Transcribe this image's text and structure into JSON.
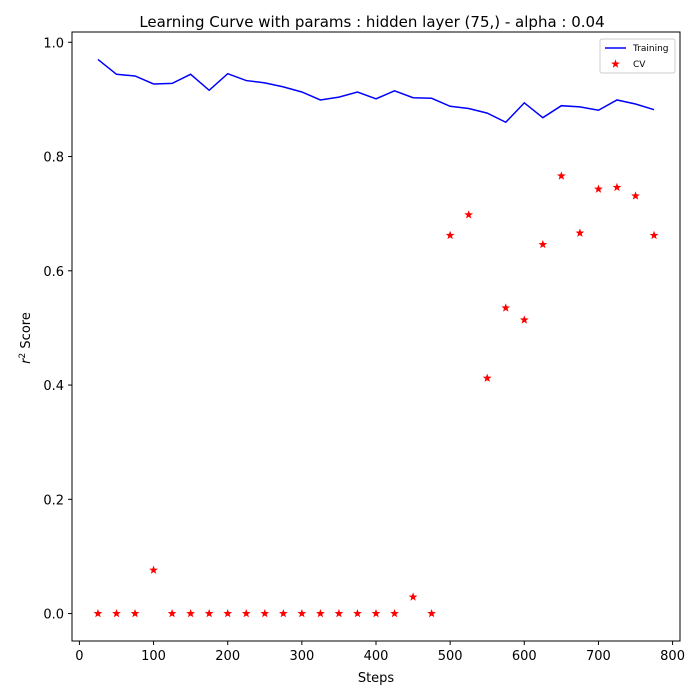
{
  "chart_data": {
    "type": "line",
    "title": "Learning Curve with params : hidden layer (75,) - alpha : 0.04",
    "xlabel": "Steps",
    "ylabel_main": "r",
    "ylabel_sup": "2",
    "ylabel_rest": " Score",
    "xlim": [
      -10,
      810
    ],
    "ylim": [
      -0.048,
      1.018
    ],
    "xticks": [
      0,
      100,
      200,
      300,
      400,
      500,
      600,
      700,
      800
    ],
    "yticks": [
      0.0,
      0.2,
      0.4,
      0.6,
      0.8,
      1.0
    ],
    "xtick_labels": [
      "0",
      "100",
      "200",
      "300",
      "400",
      "500",
      "600",
      "700",
      "800"
    ],
    "ytick_labels": [
      "0.0",
      "0.2",
      "0.4",
      "0.6",
      "0.8",
      "1.0"
    ],
    "grid": false,
    "legend_position": "top-right",
    "series": [
      {
        "name": "Training",
        "kind": "line",
        "color": "#0000ff",
        "x": [
          25,
          50,
          75,
          100,
          125,
          150,
          175,
          200,
          225,
          250,
          275,
          300,
          325,
          350,
          375,
          400,
          425,
          450,
          475,
          500,
          525,
          550,
          575,
          600,
          625,
          650,
          675,
          700,
          725,
          750,
          775
        ],
        "y": [
          0.97,
          0.944,
          0.941,
          0.927,
          0.928,
          0.944,
          0.916,
          0.945,
          0.933,
          0.929,
          0.922,
          0.913,
          0.899,
          0.904,
          0.913,
          0.901,
          0.915,
          0.903,
          0.902,
          0.888,
          0.884,
          0.876,
          0.86,
          0.894,
          0.868,
          0.889,
          0.887,
          0.881,
          0.899,
          0.892,
          0.882
        ]
      },
      {
        "name": "CV",
        "kind": "scatter",
        "marker": "star",
        "color": "#ff0000",
        "x": [
          25,
          50,
          75,
          100,
          125,
          150,
          175,
          200,
          225,
          250,
          275,
          300,
          325,
          350,
          375,
          400,
          425,
          450,
          475,
          500,
          525,
          550,
          575,
          600,
          625,
          650,
          675,
          700,
          725,
          750,
          775
        ],
        "y": [
          0.0,
          0.0,
          0.0,
          0.076,
          0.0,
          0.0,
          0.0,
          0.0,
          0.0,
          0.0,
          0.0,
          0.0,
          0.0,
          0.0,
          0.0,
          0.0,
          0.0,
          0.029,
          0.0,
          0.662,
          0.698,
          0.412,
          0.535,
          0.514,
          0.646,
          0.766,
          0.666,
          0.743,
          0.746,
          0.731,
          0.662
        ]
      }
    ]
  }
}
